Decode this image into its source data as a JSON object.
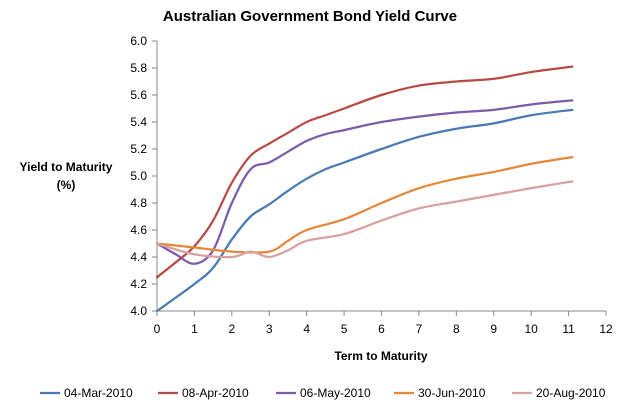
{
  "chart_data": {
    "type": "line",
    "title": "Australian Government Bond Yield Curve",
    "xlabel": "Term to Maturity",
    "ylabel_lines": [
      "Yield to Maturity",
      "(%)"
    ],
    "xlim": [
      0,
      12
    ],
    "ylim": [
      4.0,
      6.0
    ],
    "xticks": [
      0,
      1,
      2,
      3,
      4,
      5,
      6,
      7,
      8,
      9,
      10,
      11,
      12
    ],
    "yticks": [
      4.0,
      4.2,
      4.4,
      4.6,
      4.8,
      5.0,
      5.2,
      5.4,
      5.6,
      5.8,
      6.0
    ],
    "grid": false,
    "legend_position": "bottom",
    "series": [
      {
        "name": "04-Mar-2010",
        "color": "#4a7ab3",
        "points": [
          [
            0,
            4.0
          ],
          [
            1,
            4.2
          ],
          [
            1.5,
            4.32
          ],
          [
            2,
            4.53
          ],
          [
            2.5,
            4.7
          ],
          [
            3,
            4.79
          ],
          [
            3.5,
            4.89
          ],
          [
            4,
            4.98
          ],
          [
            4.5,
            5.05
          ],
          [
            5,
            5.1
          ],
          [
            6,
            5.2
          ],
          [
            7,
            5.29
          ],
          [
            8,
            5.35
          ],
          [
            9,
            5.39
          ],
          [
            10,
            5.45
          ],
          [
            11.1,
            5.49
          ]
        ]
      },
      {
        "name": "08-Apr-2010",
        "color": "#b84a44",
        "points": [
          [
            0,
            4.25
          ],
          [
            0.5,
            4.36
          ],
          [
            1,
            4.48
          ],
          [
            1.5,
            4.67
          ],
          [
            2,
            4.95
          ],
          [
            2.5,
            5.15
          ],
          [
            3,
            5.24
          ],
          [
            3.5,
            5.32
          ],
          [
            4,
            5.4
          ],
          [
            4.5,
            5.45
          ],
          [
            5,
            5.5
          ],
          [
            6,
            5.6
          ],
          [
            7,
            5.67
          ],
          [
            8,
            5.7
          ],
          [
            9,
            5.72
          ],
          [
            10,
            5.77
          ],
          [
            11.1,
            5.81
          ]
        ]
      },
      {
        "name": "06-May-2010",
        "color": "#7b5ca8",
        "points": [
          [
            0,
            4.5
          ],
          [
            0.5,
            4.42
          ],
          [
            1,
            4.35
          ],
          [
            1.5,
            4.45
          ],
          [
            2,
            4.8
          ],
          [
            2.5,
            5.05
          ],
          [
            3,
            5.1
          ],
          [
            3.5,
            5.18
          ],
          [
            4,
            5.26
          ],
          [
            4.5,
            5.31
          ],
          [
            5,
            5.34
          ],
          [
            6,
            5.4
          ],
          [
            7,
            5.44
          ],
          [
            8,
            5.47
          ],
          [
            9,
            5.49
          ],
          [
            10,
            5.53
          ],
          [
            11.1,
            5.56
          ]
        ]
      },
      {
        "name": "30-Jun-2010",
        "color": "#e5873a",
        "points": [
          [
            0,
            4.5
          ],
          [
            1,
            4.47
          ],
          [
            2,
            4.44
          ],
          [
            3,
            4.44
          ],
          [
            3.5,
            4.52
          ],
          [
            4,
            4.6
          ],
          [
            5,
            4.68
          ],
          [
            6,
            4.8
          ],
          [
            7,
            4.91
          ],
          [
            8,
            4.98
          ],
          [
            9,
            5.03
          ],
          [
            10,
            5.09
          ],
          [
            11.1,
            5.14
          ]
        ]
      },
      {
        "name": "20-Aug-2010",
        "color": "#d9a0a0",
        "points": [
          [
            0,
            4.5
          ],
          [
            1,
            4.42
          ],
          [
            2,
            4.4
          ],
          [
            2.5,
            4.44
          ],
          [
            3,
            4.4
          ],
          [
            3.5,
            4.45
          ],
          [
            4,
            4.52
          ],
          [
            5,
            4.57
          ],
          [
            6,
            4.67
          ],
          [
            7,
            4.76
          ],
          [
            8,
            4.81
          ],
          [
            9,
            4.86
          ],
          [
            10,
            4.91
          ],
          [
            11.1,
            4.96
          ]
        ]
      }
    ]
  },
  "colors": {
    "axis": "#888888",
    "text": "#000000"
  }
}
